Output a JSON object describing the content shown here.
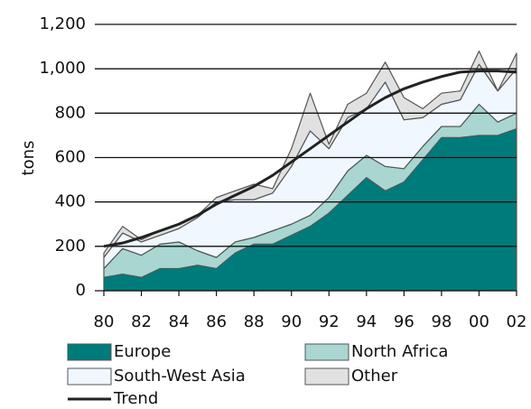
{
  "chart_data": {
    "type": "area",
    "stacked": true,
    "y_label": "tons",
    "categories": [
      "80",
      null,
      "82",
      null,
      "84",
      null,
      "86",
      null,
      "88",
      null,
      "90",
      null,
      "92",
      null,
      "94",
      null,
      "96",
      null,
      "98",
      null,
      "00",
      null,
      "02"
    ],
    "ylim": [
      0,
      1200
    ],
    "yticks": [
      0,
      200,
      400,
      600,
      800,
      {
        "value": 1000,
        "label": "1,000"
      },
      {
        "value": 1200,
        "label": "1,200"
      }
    ],
    "grid": true,
    "series": [
      {
        "name": "Europe",
        "color": "#007b7b",
        "values": [
          60,
          75,
          60,
          100,
          100,
          115,
          100,
          170,
          210,
          210,
          250,
          290,
          350,
          430,
          510,
          450,
          490,
          590,
          690,
          690,
          700,
          700,
          730
        ]
      },
      {
        "name": "North Africa",
        "color": "#a9d6d1",
        "values": [
          40,
          115,
          100,
          110,
          120,
          65,
          50,
          50,
          30,
          60,
          50,
          50,
          70,
          110,
          100,
          110,
          60,
          60,
          50,
          50,
          140,
          60,
          70
        ]
      },
      {
        "name": "South-West Asia",
        "color": "#f0f7fe",
        "values": [
          50,
          70,
          60,
          40,
          60,
          150,
          250,
          190,
          170,
          170,
          260,
          380,
          220,
          240,
          210,
          380,
          220,
          130,
          100,
          120,
          180,
          140,
          200
        ]
      },
      {
        "name": "Other",
        "color": "#e1e1e1",
        "values": [
          20,
          30,
          10,
          20,
          20,
          10,
          20,
          40,
          70,
          20,
          80,
          170,
          20,
          60,
          70,
          90,
          100,
          40,
          50,
          40,
          60,
          0,
          70
        ]
      },
      {
        "name": "Trend",
        "type": "line",
        "color": "#222222",
        "values": [
          200,
          215,
          240,
          270,
          300,
          340,
          390,
          430,
          470,
          520,
          580,
          640,
          700,
          760,
          820,
          870,
          910,
          940,
          965,
          985,
          990,
          990,
          985
        ]
      }
    ]
  }
}
